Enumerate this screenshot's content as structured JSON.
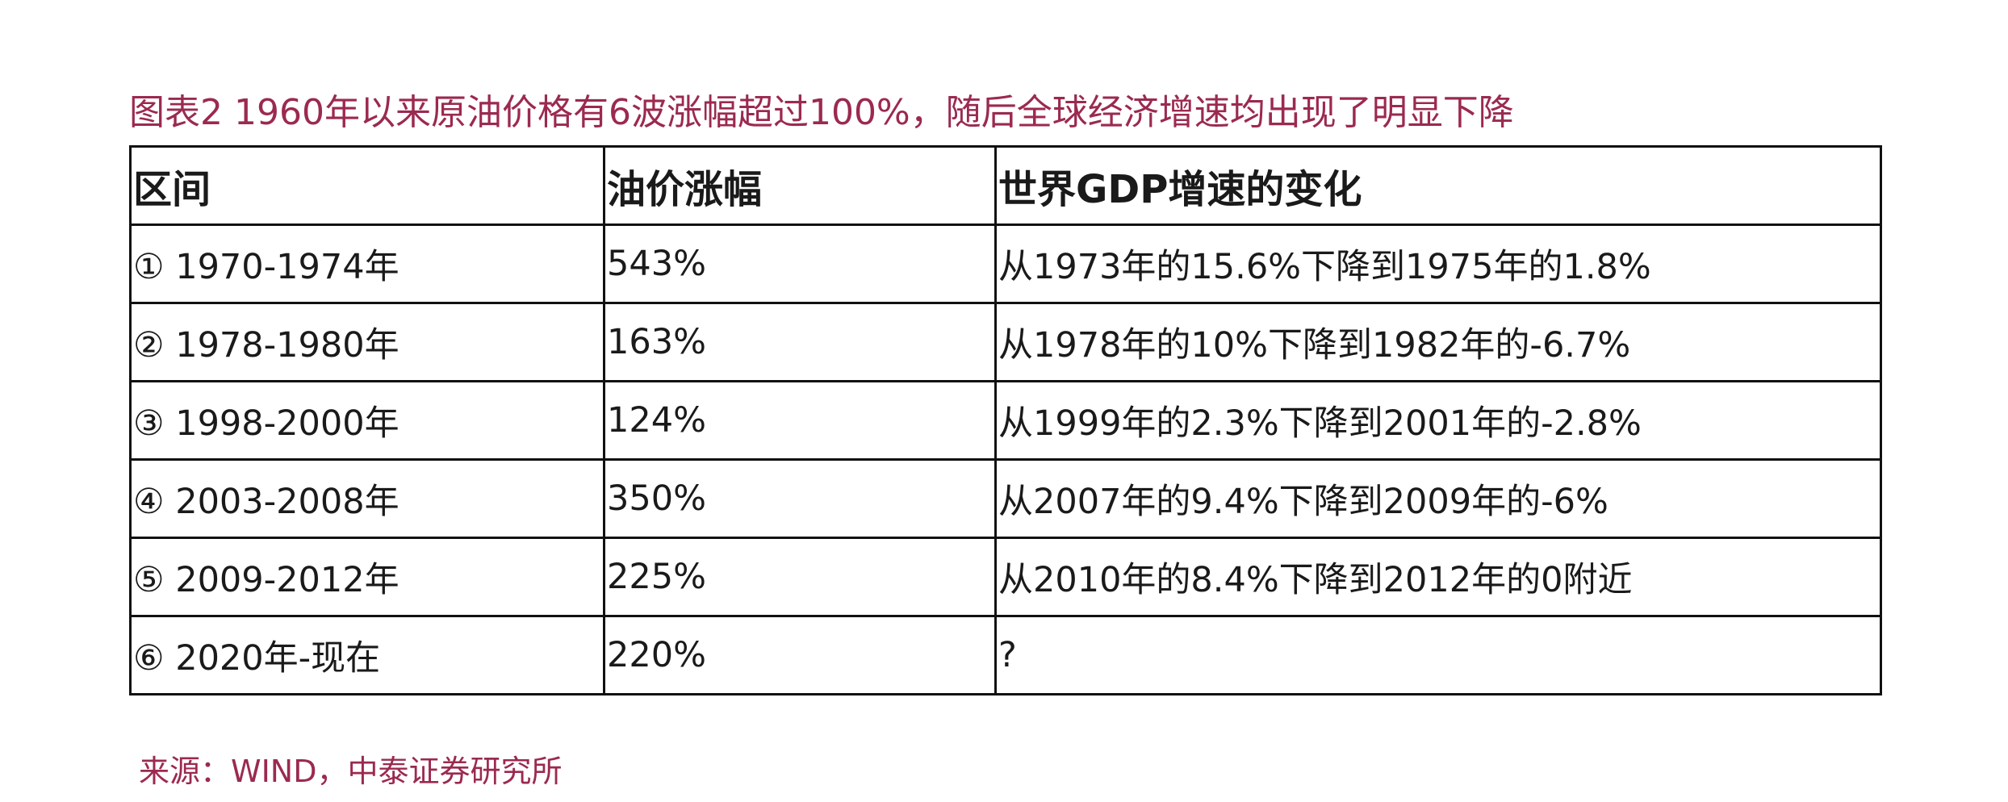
{
  "title": "图表2 1960年以来原油价格有6波涨幅超过100%，随后全球经济增速均出现了明显下降",
  "table": {
    "headers": [
      "区间",
      "油价涨幅",
      "世界GDP增速的变化"
    ],
    "rows": [
      [
        "① 1970-1974年",
        "543%",
        "从1973年的15.6%下降到1975年的1.8%"
      ],
      [
        "② 1978-1980年",
        "163%",
        "从1978年的10%下降到1982年的-6.7%"
      ],
      [
        "③ 1998-2000年",
        "124%",
        "从1999年的2.3%下降到2001年的-2.8%"
      ],
      [
        "④ 2003-2008年",
        "350%",
        "从2007年的9.4%下降到2009年的-6%"
      ],
      [
        "⑤ 2009-2012年",
        "225%",
        "从2010年的8.4%下降到2012年的0附近"
      ],
      [
        "⑥ 2020年-现在",
        "220%",
        "?"
      ]
    ]
  },
  "source": "来源：WIND，中泰证券研究所",
  "colors": {
    "accent": "#9b2a4e",
    "border": "#111111",
    "text": "#1a1a1a"
  }
}
